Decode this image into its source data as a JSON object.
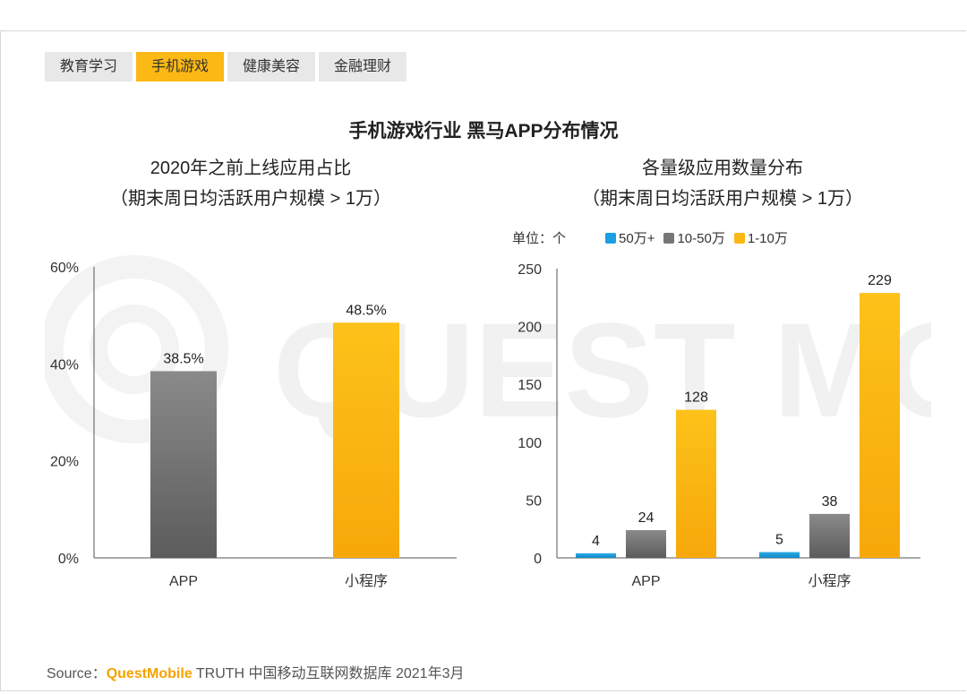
{
  "tabs": [
    {
      "label": "教育学习",
      "active": false
    },
    {
      "label": "手机游戏",
      "active": true
    },
    {
      "label": "健康美容",
      "active": false
    },
    {
      "label": "金融理财",
      "active": false
    }
  ],
  "title": "手机游戏行业 黑马APP分布情况",
  "watermark": "QUEST MOBILE",
  "left_chart": {
    "title_line1": "2020年之前上线应用占比",
    "title_line2": "（期末周日均活跃用户规模 > 1万）"
  },
  "right_chart": {
    "title_line1": "各量级应用数量分布",
    "title_line2": "（期末周日均活跃用户规模 > 1万）",
    "unit": "单位：个"
  },
  "chart_data": [
    {
      "type": "bar",
      "title": "2020年之前上线应用占比",
      "categories": [
        "APP",
        "小程序"
      ],
      "values": [
        38.5,
        48.5
      ],
      "value_labels": [
        "38.5%",
        "48.5%"
      ],
      "yticks": [
        "0%",
        "20%",
        "40%",
        "60%"
      ],
      "ylim": [
        0,
        60
      ],
      "colors": [
        "#777777",
        "#fcb814"
      ]
    },
    {
      "type": "bar",
      "title": "各量级应用数量分布",
      "categories": [
        "APP",
        "小程序"
      ],
      "series": [
        {
          "name": "50万+",
          "values": [
            4,
            5
          ],
          "color": "#1a9fe0"
        },
        {
          "name": "10-50万",
          "values": [
            24,
            38
          ],
          "color": "#777777"
        },
        {
          "name": "1-10万",
          "values": [
            128,
            229
          ],
          "color": "#fcb814"
        }
      ],
      "yticks": [
        "0",
        "50",
        "100",
        "150",
        "200",
        "250"
      ],
      "ylim": [
        0,
        250
      ],
      "legend": "top"
    }
  ],
  "source": {
    "prefix": "Source：",
    "brand": "QuestMobile",
    "rest": " TRUTH 中国移动互联网数据库 2021年3月"
  }
}
